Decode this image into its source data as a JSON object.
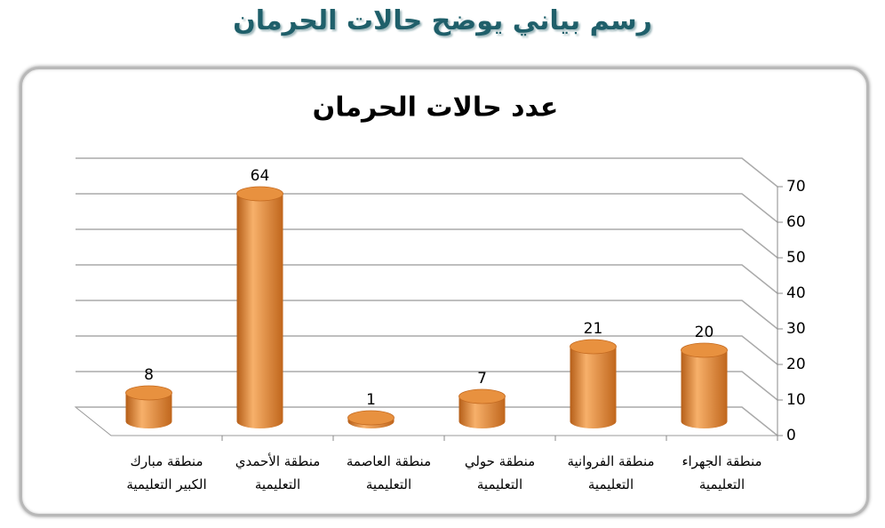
{
  "chart_data": {
    "type": "bar",
    "page_title": "رسم بياني يوضح حالات الحرمان",
    "title": "عدد حالات الحرمان",
    "categories": [
      "منطقة الجهراء\nالتعليمية",
      "منطقة الفروانية\nالتعليمية",
      "منطقة حولي\nالتعليمية",
      "منطقة العاصمة\nالتعليمية",
      "منطقة الأحمدي\nالتعليمية",
      "منطقة مبارك\nالكبير التعليمية"
    ],
    "values": [
      20,
      21,
      7,
      1,
      64,
      8
    ],
    "color": "#e8913f",
    "ylim": [
      0,
      70
    ],
    "yticks": [
      0,
      10,
      20,
      30,
      40,
      50,
      60,
      70
    ],
    "grid": true
  }
}
